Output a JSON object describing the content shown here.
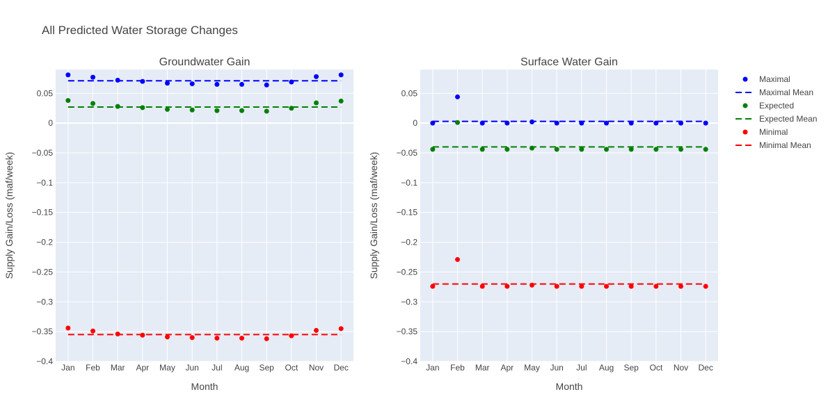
{
  "title": "All Predicted Water Storage Changes",
  "chart_data": [
    {
      "type": "scatter",
      "title": "Groundwater Gain",
      "xlabel": "Month",
      "ylabel": "Supply Gain/Loss (maf/week)",
      "categories": [
        "Jan",
        "Feb",
        "Mar",
        "Apr",
        "May",
        "Jun",
        "Jul",
        "Aug",
        "Sep",
        "Oct",
        "Nov",
        "Dec"
      ],
      "ylim": [
        -0.4,
        0.09
      ],
      "yticks": [
        0.05,
        0,
        -0.05,
        -0.1,
        -0.15,
        -0.2,
        -0.25,
        -0.3,
        -0.35,
        -0.4
      ],
      "ytick_labels": [
        "0.05",
        "0",
        "−0.05",
        "−0.1",
        "−0.15",
        "−0.2",
        "−0.25",
        "−0.3",
        "−0.35",
        "−0.4"
      ],
      "grid": true,
      "series": [
        {
          "name": "Maximal",
          "color": "#0000ff",
          "values": [
            0.081,
            0.077,
            0.072,
            0.07,
            0.067,
            0.066,
            0.065,
            0.065,
            0.064,
            0.069,
            0.078,
            0.081
          ]
        },
        {
          "name": "Expected",
          "color": "#008000",
          "values": [
            0.038,
            0.033,
            0.028,
            0.026,
            0.023,
            0.022,
            0.021,
            0.021,
            0.02,
            0.025,
            0.034,
            0.037
          ]
        },
        {
          "name": "Minimal",
          "color": "#ff0000",
          "values": [
            -0.344,
            -0.349,
            -0.354,
            -0.356,
            -0.359,
            -0.36,
            -0.361,
            -0.361,
            -0.362,
            -0.357,
            -0.348,
            -0.345
          ]
        }
      ],
      "means": [
        {
          "name": "Maximal Mean",
          "color": "#0000ff",
          "value": 0.071
        },
        {
          "name": "Expected Mean",
          "color": "#008000",
          "value": 0.027
        },
        {
          "name": "Minimal Mean",
          "color": "#ff0000",
          "value": -0.355
        }
      ]
    },
    {
      "type": "scatter",
      "title": "Surface Water Gain",
      "xlabel": "Month",
      "ylabel": "Supply Gain/Loss (maf/week)",
      "categories": [
        "Jan",
        "Feb",
        "Mar",
        "Apr",
        "May",
        "Jun",
        "Jul",
        "Aug",
        "Sep",
        "Oct",
        "Nov",
        "Dec"
      ],
      "ylim": [
        -0.4,
        0.09
      ],
      "yticks": [
        0.05,
        0,
        -0.05,
        -0.1,
        -0.15,
        -0.2,
        -0.25,
        -0.3,
        -0.35,
        -0.4
      ],
      "ytick_labels": [
        "0.05",
        "0",
        "−0.05",
        "−0.1",
        "−0.15",
        "−0.2",
        "−0.25",
        "−0.3",
        "−0.35",
        "−0.4"
      ],
      "grid": true,
      "series": [
        {
          "name": "Maximal",
          "color": "#0000ff",
          "values": [
            0.0,
            0.044,
            0.0,
            0.0,
            0.002,
            0.0,
            0.0,
            0.0,
            0.0,
            0.0,
            0.0,
            0.0
          ]
        },
        {
          "name": "Expected",
          "color": "#008000",
          "values": [
            -0.044,
            0.001,
            -0.044,
            -0.044,
            -0.042,
            -0.044,
            -0.044,
            -0.044,
            -0.044,
            -0.044,
            -0.044,
            -0.044
          ]
        },
        {
          "name": "Minimal",
          "color": "#ff0000",
          "values": [
            -0.274,
            -0.229,
            -0.274,
            -0.274,
            -0.272,
            -0.274,
            -0.274,
            -0.274,
            -0.274,
            -0.274,
            -0.274,
            -0.274
          ]
        }
      ],
      "means": [
        {
          "name": "Maximal Mean",
          "color": "#0000ff",
          "value": 0.003
        },
        {
          "name": "Expected Mean",
          "color": "#008000",
          "value": -0.04
        },
        {
          "name": "Minimal Mean",
          "color": "#ff0000",
          "value": -0.27
        }
      ]
    }
  ],
  "legend": {
    "placement": "right",
    "items": [
      {
        "label": "Maximal",
        "kind": "marker",
        "color": "#0000ff"
      },
      {
        "label": "Maximal Mean",
        "kind": "dash",
        "color": "#0000ff"
      },
      {
        "label": "Expected",
        "kind": "marker",
        "color": "#008000"
      },
      {
        "label": "Expected Mean",
        "kind": "dash",
        "color": "#008000"
      },
      {
        "label": "Minimal",
        "kind": "marker",
        "color": "#ff0000"
      },
      {
        "label": "Minimal Mean",
        "kind": "dash",
        "color": "#ff0000"
      }
    ]
  }
}
